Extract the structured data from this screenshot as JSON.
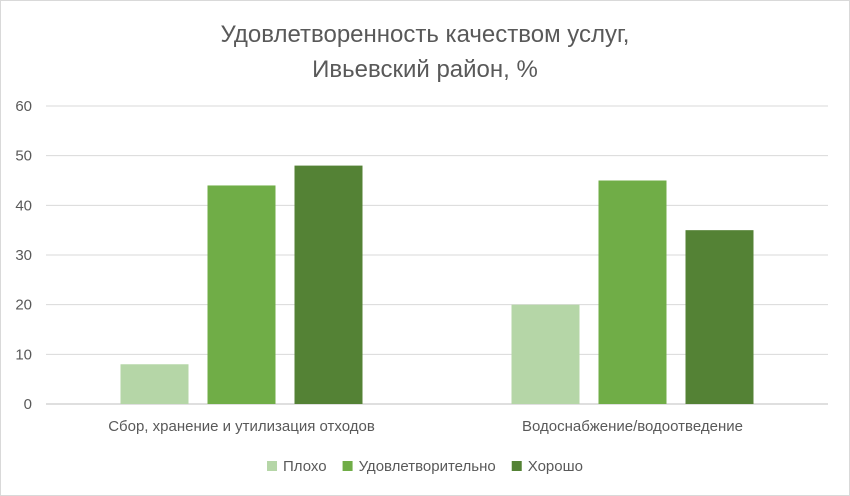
{
  "chart_data": {
    "type": "bar",
    "title": "Удовлетворенность качеством услуг, Ивьевский район, %",
    "title_lines": [
      "Удовлетворенность качеством услуг,",
      "Ивьевский район, %"
    ],
    "categories": [
      "Сбор, хранение и утилизация отходов",
      "Водоснабжение/водоотведение"
    ],
    "series": [
      {
        "name": "Плохо",
        "values": [
          8,
          20
        ],
        "color": "#b5d6a7"
      },
      {
        "name": "Удовлетворительно",
        "values": [
          44,
          45
        ],
        "color": "#70ad47"
      },
      {
        "name": "Хорошо",
        "values": [
          48,
          35
        ],
        "color": "#548235"
      }
    ],
    "ylim": [
      0,
      60
    ],
    "yticks": [
      0,
      10,
      20,
      30,
      40,
      50,
      60
    ],
    "grid": true,
    "legend": "bottom",
    "xlabel": "",
    "ylabel": ""
  }
}
